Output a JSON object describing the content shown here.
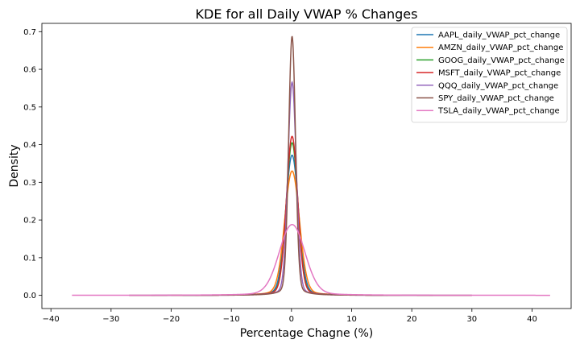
{
  "chart_data": {
    "type": "line",
    "title": "KDE for all Daily VWAP % Changes",
    "xlabel": "Percentage Chagne (%)",
    "ylabel": "Density",
    "xlim": [
      -41.5,
      46.5
    ],
    "ylim": [
      -0.035,
      0.722
    ],
    "xticks": [
      -40,
      -30,
      -20,
      -10,
      0,
      10,
      20,
      30,
      40
    ],
    "yticks": [
      0.0,
      0.1,
      0.2,
      0.3,
      0.4,
      0.5,
      0.6,
      0.7
    ],
    "grid": false,
    "legend_position": "top-right",
    "series": [
      {
        "name": "AAPL_daily_VWAP_pct_change",
        "color": "#1f77b4",
        "x_range": [
          -14,
          14
        ],
        "peak": 0.372,
        "sigma": 1.05
      },
      {
        "name": "AMZN_daily_VWAP_pct_change",
        "color": "#ff7f0e",
        "x_range": [
          -20,
          18
        ],
        "peak": 0.33,
        "sigma": 1.2
      },
      {
        "name": "GOOG_daily_VWAP_pct_change",
        "color": "#2ca02c",
        "x_range": [
          -18,
          16
        ],
        "peak": 0.405,
        "sigma": 0.95
      },
      {
        "name": "MSFT_daily_VWAP_pct_change",
        "color": "#d62728",
        "x_range": [
          -16,
          15
        ],
        "peak": 0.422,
        "sigma": 0.92
      },
      {
        "name": "QQQ_daily_VWAP_pct_change",
        "color": "#9467bd",
        "x_range": [
          -27,
          30
        ],
        "peak": 0.566,
        "sigma": 0.68
      },
      {
        "name": "SPY_daily_VWAP_pct_change",
        "color": "#8c564b",
        "x_range": [
          -27,
          30
        ],
        "peak": 0.688,
        "sigma": 0.56
      },
      {
        "name": "TSLA_daily_VWAP_pct_change",
        "color": "#e377c2",
        "x_range": [
          -36.5,
          43
        ],
        "peak": 0.188,
        "sigma": 2.1
      }
    ]
  }
}
